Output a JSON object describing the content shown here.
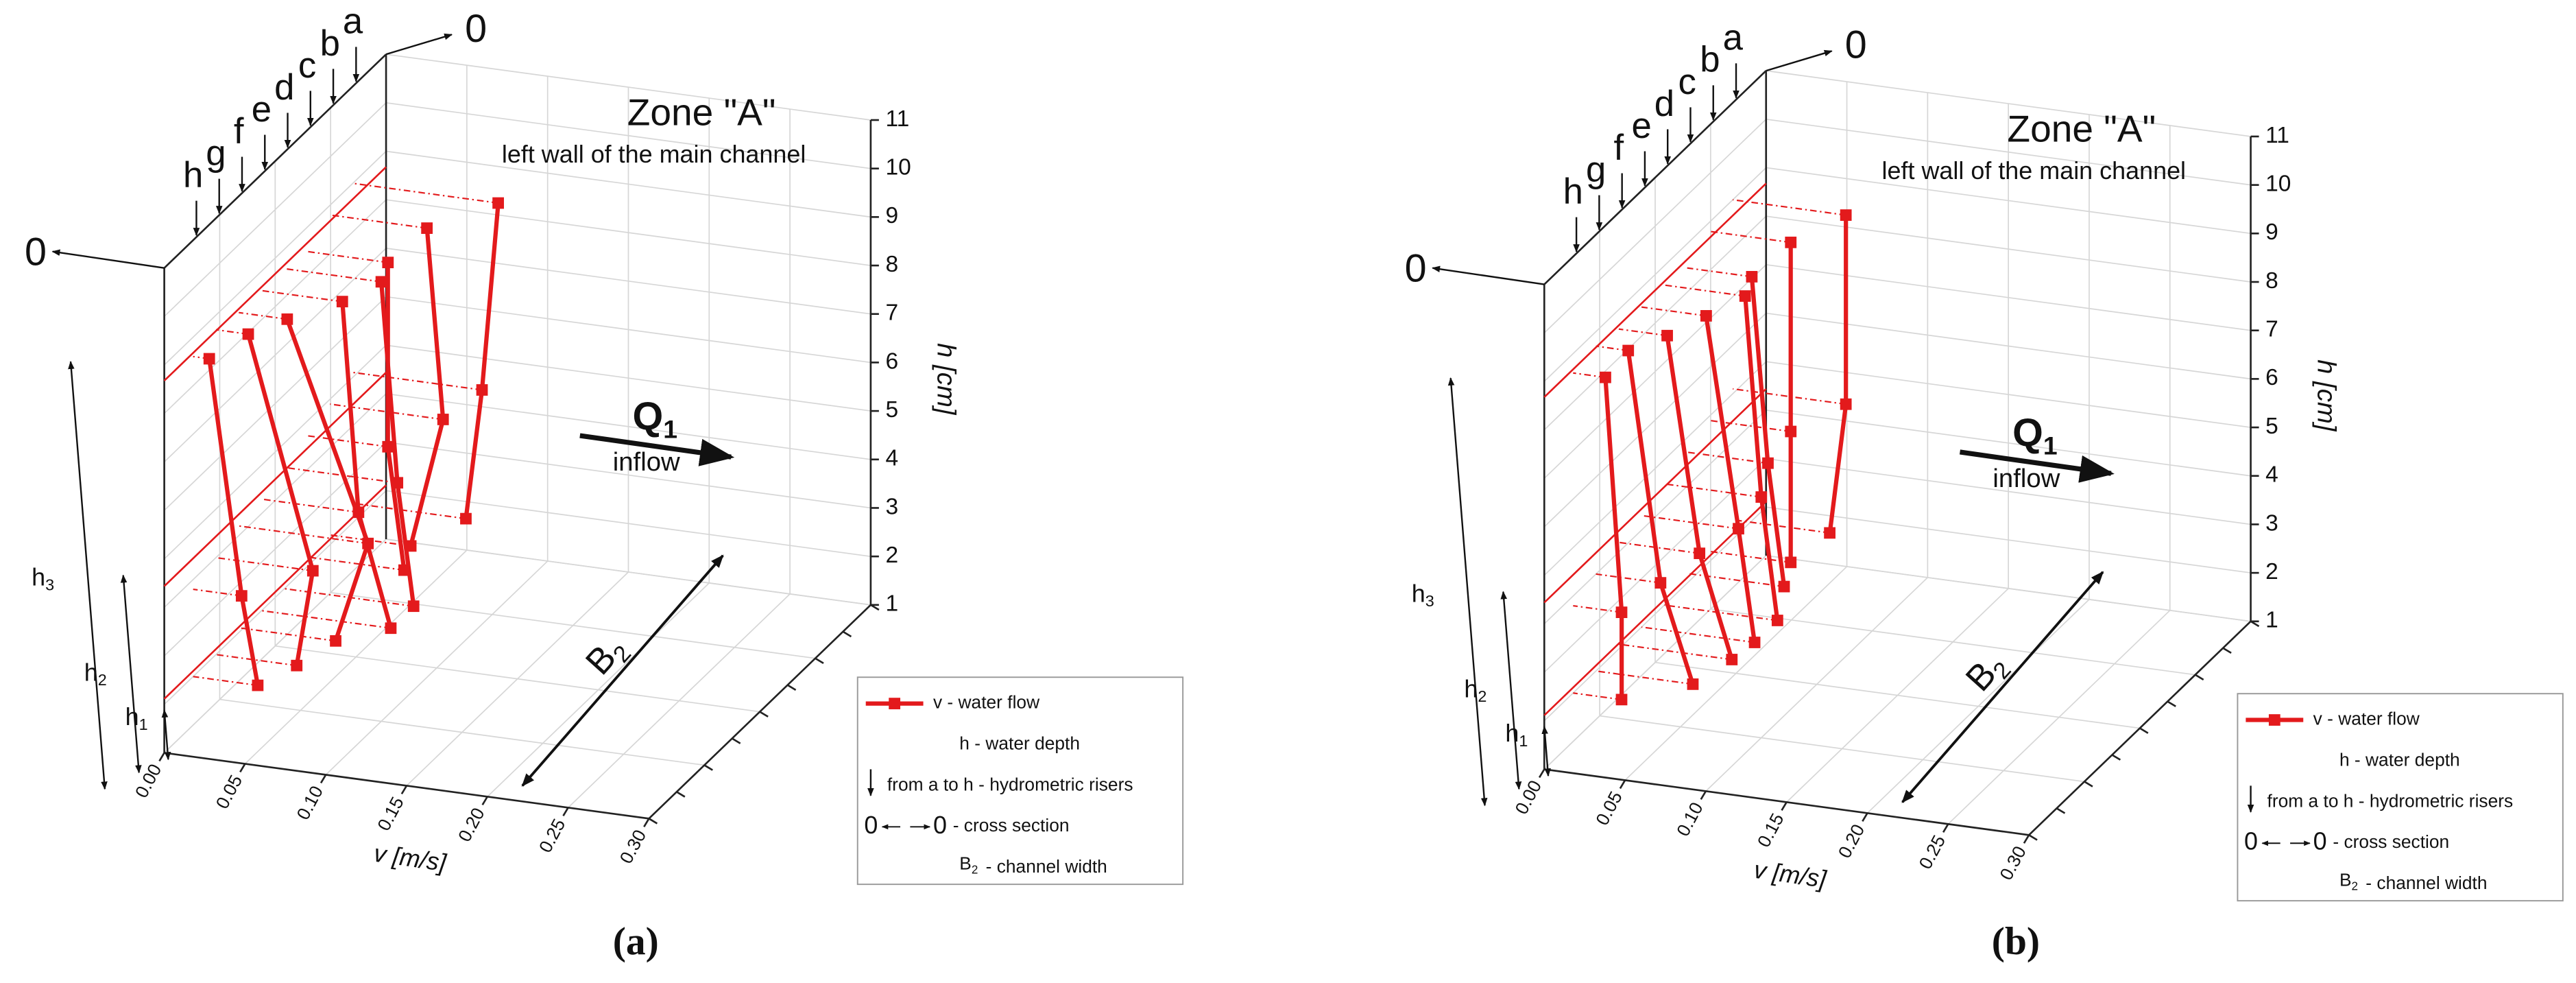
{
  "chart_data": [
    {
      "type": "profile3d",
      "panel_label": "(a)",
      "title": "Zone \"A\"",
      "subtitle": "left wall of the main channel",
      "x_label": "v [m/s]",
      "y_label": "h [cm]",
      "color": "#e31a1c",
      "xlim": [
        0,
        0.3
      ],
      "xticks": [
        {
          "value": 0,
          "label": "0.00"
        },
        {
          "value": 0.05,
          "label": "0.05"
        },
        {
          "value": 0.1,
          "label": "0.10"
        },
        {
          "value": 0.15,
          "label": "0.15"
        },
        {
          "value": 0.2,
          "label": "0.20"
        },
        {
          "value": 0.25,
          "label": "0.25"
        },
        {
          "value": 0.3,
          "label": "0.30"
        }
      ],
      "ylim": [
        1,
        11
      ],
      "yticks": [
        1,
        2,
        3,
        4,
        5,
        6,
        7,
        8,
        9,
        10,
        11
      ],
      "grid": true,
      "series": [
        {
          "name": "a",
          "x": [
            0.09,
            0.08,
            0.07
          ],
          "y": [
            9.0,
            5.1,
            2.4
          ]
        },
        {
          "name": "b",
          "x": [
            0.06,
            0.07,
            0.05
          ],
          "y": [
            8.8,
            4.9,
            2.2
          ]
        },
        {
          "name": "c",
          "x": [
            0.05,
            0.05,
            0.06
          ],
          "y": [
            8.5,
            4.7,
            2.2
          ]
        },
        {
          "name": "d",
          "x": [
            0.06,
            0.07,
            0.08
          ],
          "y": [
            8.6,
            4.5,
            2.0
          ]
        },
        {
          "name": "e",
          "x": [
            0.05,
            0.06,
            0.08
          ],
          "y": [
            8.6,
            4.3,
            2.0
          ]
        },
        {
          "name": "f",
          "x": [
            0.03,
            0.08,
            0.06
          ],
          "y": [
            8.6,
            4.2,
            2.1
          ]
        },
        {
          "name": "g",
          "x": [
            0.02,
            0.06,
            0.05
          ],
          "y": [
            8.7,
            4.0,
            2.0
          ]
        },
        {
          "name": "h",
          "x": [
            0.01,
            0.03,
            0.04
          ],
          "y": [
            8.6,
            3.8,
            2.0
          ]
        }
      ],
      "section_ends": [
        "0",
        "0"
      ],
      "flow": {
        "symbol": "Q",
        "subscript": "1",
        "label": "inflow"
      },
      "width_label": {
        "symbol": "B",
        "subscript": "2"
      },
      "depth_labels": [
        {
          "symbol": "h",
          "subscript": "1"
        },
        {
          "symbol": "h",
          "subscript": "2"
        },
        {
          "symbol": "h",
          "subscript": "3"
        }
      ],
      "legend": {
        "entries": [
          {
            "text": "v - water flow"
          },
          {
            "text": "h - water depth"
          },
          {
            "text": "from a to h - hydrometric risers"
          },
          {
            "ends": [
              "0",
              "0"
            ],
            "text": "- cross section"
          },
          {
            "symbol": "B",
            "subscript": "2",
            "text": "- channel width"
          }
        ]
      }
    },
    {
      "type": "profile3d",
      "panel_label": "(b)",
      "title": "Zone \"A\"",
      "subtitle": "left wall of the main channel",
      "x_label": "v [m/s]",
      "y_label": "h [cm]",
      "color": "#e31a1c",
      "xlim": [
        0,
        0.3
      ],
      "xticks": [
        {
          "value": 0,
          "label": "0.00"
        },
        {
          "value": 0.05,
          "label": "0.05"
        },
        {
          "value": 0.1,
          "label": "0.10"
        },
        {
          "value": 0.15,
          "label": "0.15"
        },
        {
          "value": 0.2,
          "label": "0.20"
        },
        {
          "value": 0.25,
          "label": "0.25"
        },
        {
          "value": 0.3,
          "label": "0.30"
        }
      ],
      "ylim": [
        1,
        11
      ],
      "yticks": [
        1,
        2,
        3,
        4,
        5,
        6,
        7,
        8,
        9,
        10,
        11
      ],
      "grid": true,
      "series": [
        {
          "name": "a",
          "x": [
            0.07,
            0.07,
            0.06
          ],
          "y": [
            9.0,
            5.1,
            2.4
          ]
        },
        {
          "name": "b",
          "x": [
            0.05,
            0.05,
            0.05
          ],
          "y": [
            8.8,
            4.9,
            2.2
          ]
        },
        {
          "name": "c",
          "x": [
            0.04,
            0.05,
            0.06
          ],
          "y": [
            8.5,
            4.7,
            2.2
          ]
        },
        {
          "name": "d",
          "x": [
            0.05,
            0.06,
            0.07
          ],
          "y": [
            8.6,
            4.5,
            2.0
          ]
        },
        {
          "name": "e",
          "x": [
            0.04,
            0.06,
            0.07
          ],
          "y": [
            8.6,
            4.3,
            2.0
          ]
        },
        {
          "name": "f",
          "x": [
            0.03,
            0.05,
            0.07
          ],
          "y": [
            8.6,
            4.2,
            2.1
          ]
        },
        {
          "name": "g",
          "x": [
            0.02,
            0.04,
            0.06
          ],
          "y": [
            8.7,
            4.0,
            2.0
          ]
        },
        {
          "name": "h",
          "x": [
            0.02,
            0.03,
            0.03
          ],
          "y": [
            8.6,
            3.8,
            2.0
          ]
        }
      ],
      "section_ends": [
        "0",
        "0"
      ],
      "flow": {
        "symbol": "Q",
        "subscript": "1",
        "label": "inflow"
      },
      "width_label": {
        "symbol": "B",
        "subscript": "2"
      },
      "depth_labels": [
        {
          "symbol": "h",
          "subscript": "1"
        },
        {
          "symbol": "h",
          "subscript": "2"
        },
        {
          "symbol": "h",
          "subscript": "3"
        }
      ],
      "legend": {
        "entries": [
          {
            "text": "v - water flow"
          },
          {
            "text": "h - water depth"
          },
          {
            "text": "from a to h - hydrometric risers"
          },
          {
            "ends": [
              "0",
              "0"
            ],
            "text": "- cross section"
          },
          {
            "symbol": "B",
            "subscript": "2",
            "text": "- channel width"
          }
        ]
      }
    }
  ]
}
